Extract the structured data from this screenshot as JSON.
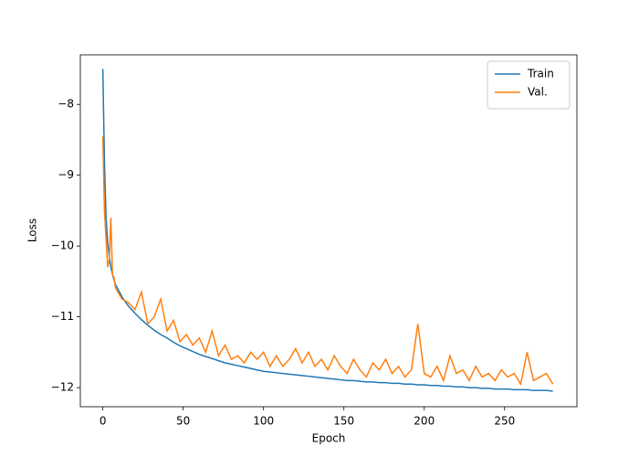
{
  "chart_data": {
    "type": "line",
    "xlabel": "Epoch",
    "ylabel": "Loss",
    "x": [
      0,
      1,
      2,
      3,
      4,
      5,
      6,
      7,
      8,
      12,
      16,
      20,
      24,
      28,
      32,
      36,
      40,
      44,
      48,
      52,
      56,
      60,
      64,
      68,
      72,
      76,
      80,
      84,
      88,
      92,
      96,
      100,
      104,
      108,
      112,
      116,
      120,
      124,
      128,
      132,
      136,
      140,
      144,
      148,
      152,
      156,
      160,
      164,
      168,
      172,
      176,
      180,
      184,
      188,
      192,
      196,
      200,
      204,
      208,
      212,
      216,
      220,
      224,
      228,
      232,
      236,
      240,
      244,
      248,
      252,
      256,
      260,
      264,
      268,
      272,
      276,
      280
    ],
    "series": [
      {
        "name": "Train",
        "color": "#1f77b4",
        "values": [
          -7.5,
          -8.8,
          -9.6,
          -9.95,
          -10.15,
          -10.3,
          -10.4,
          -10.48,
          -10.55,
          -10.72,
          -10.85,
          -10.95,
          -11.04,
          -11.12,
          -11.19,
          -11.25,
          -11.3,
          -11.36,
          -11.41,
          -11.45,
          -11.49,
          -11.53,
          -11.56,
          -11.59,
          -11.62,
          -11.65,
          -11.67,
          -11.69,
          -11.71,
          -11.73,
          -11.75,
          -11.77,
          -11.78,
          -11.79,
          -11.8,
          -11.81,
          -11.82,
          -11.83,
          -11.84,
          -11.85,
          -11.86,
          -11.87,
          -11.88,
          -11.89,
          -11.9,
          -11.9,
          -11.91,
          -11.92,
          -11.92,
          -11.93,
          -11.93,
          -11.94,
          -11.94,
          -11.95,
          -11.95,
          -11.96,
          -11.96,
          -11.97,
          -11.97,
          -11.98,
          -11.98,
          -11.99,
          -11.99,
          -12.0,
          -12.0,
          -12.01,
          -12.01,
          -12.02,
          -12.02,
          -12.02,
          -12.03,
          -12.03,
          -12.03,
          -12.04,
          -12.04,
          -12.04,
          -12.05
        ]
      },
      {
        "name": "Val.",
        "color": "#ff7f0e",
        "values": [
          -8.45,
          -9.5,
          -9.9,
          -10.3,
          -10.2,
          -9.6,
          -10.4,
          -10.45,
          -10.6,
          -10.75,
          -10.8,
          -10.9,
          -10.65,
          -11.1,
          -11.0,
          -10.75,
          -11.2,
          -11.05,
          -11.35,
          -11.25,
          -11.4,
          -11.3,
          -11.5,
          -11.2,
          -11.55,
          -11.4,
          -11.6,
          -11.55,
          -11.65,
          -11.5,
          -11.6,
          -11.5,
          -11.7,
          -11.55,
          -11.7,
          -11.6,
          -11.45,
          -11.65,
          -11.5,
          -11.7,
          -11.6,
          -11.75,
          -11.55,
          -11.7,
          -11.8,
          -11.6,
          -11.75,
          -11.85,
          -11.65,
          -11.75,
          -11.6,
          -11.8,
          -11.7,
          -11.85,
          -11.75,
          -11.1,
          -11.8,
          -11.85,
          -11.7,
          -11.9,
          -11.55,
          -11.8,
          -11.75,
          -11.9,
          -11.7,
          -11.85,
          -11.8,
          -11.9,
          -11.75,
          -11.85,
          -11.8,
          -11.95,
          -11.5,
          -11.9,
          -11.85,
          -11.8,
          -11.95
        ]
      }
    ],
    "xlim": [
      -14,
      295
    ],
    "ylim": [
      -12.27,
      -7.3
    ],
    "xticks": [
      0,
      50,
      100,
      150,
      200,
      250
    ],
    "yticks": [
      {
        "value": -8,
        "label": "−8"
      },
      {
        "value": -9,
        "label": "−9"
      },
      {
        "value": -10,
        "label": "−10"
      },
      {
        "value": -11,
        "label": "−11"
      },
      {
        "value": -12,
        "label": "−12"
      }
    ],
    "legend": "upper right",
    "grid": false
  }
}
